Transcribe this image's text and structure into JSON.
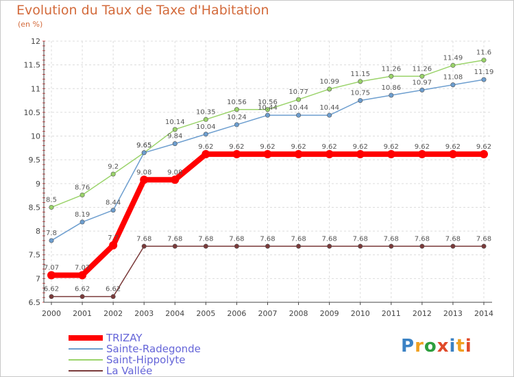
{
  "header": {
    "title": "Evolution du Taux de Taxe d'Habitation",
    "unit": "(en %)"
  },
  "logo": {
    "text": "Proxiti",
    "colors": [
      "#3b82c4",
      "#f0a020",
      "#2e9e3e",
      "#e04a2a",
      "#3b82c4",
      "#f0a020",
      "#e04a2a"
    ]
  },
  "chart_data": {
    "type": "line",
    "title": "Evolution du Taux de Taxe d'Habitation",
    "ylabel": "(en %)",
    "xlabel": "",
    "ylim": [
      6.5,
      12
    ],
    "yticks": [
      "6.5",
      "7",
      "7.5",
      "8",
      "8.5",
      "9",
      "9.5",
      "10",
      "10.5",
      "11",
      "11.5",
      "12"
    ],
    "x": [
      "2000",
      "2001",
      "2002",
      "2003",
      "2004",
      "2005",
      "2006",
      "2007",
      "2008",
      "2009",
      "2010",
      "2011",
      "2012",
      "2013",
      "2014"
    ],
    "grid": true,
    "legend_position": "bottom-left",
    "series": [
      {
        "name": "TRIZAY",
        "color": "#ff0000",
        "values": [
          7.07,
          7.07,
          7.7,
          9.08,
          9.08,
          9.62,
          9.62,
          9.62,
          9.62,
          9.62,
          9.62,
          9.62,
          9.62,
          9.62,
          9.62
        ],
        "labels": [
          "7.07",
          "7.07",
          "7.7",
          "9.08",
          "9.08",
          "9.62",
          "9.62",
          "9.62",
          "9.62",
          "9.62",
          "9.62",
          "9.62",
          "9.62",
          "9.62",
          "9.62"
        ]
      },
      {
        "name": "Sainte-Radegonde",
        "color": "#6d9ecf",
        "values": [
          7.8,
          8.19,
          8.44,
          9.65,
          9.84,
          10.04,
          10.24,
          10.44,
          10.44,
          10.44,
          10.75,
          10.86,
          10.97,
          11.08,
          11.19
        ],
        "labels": [
          "7.8",
          "8.19",
          "8.44",
          "9.65",
          "9.84",
          "10.04",
          "10.24",
          "10.44",
          "10.44",
          "10.44",
          "10.75",
          "10.86",
          "10.97",
          "11.08",
          "11.19"
        ]
      },
      {
        "name": "Saint-Hippolyte",
        "color": "#9ad36a",
        "values": [
          8.5,
          8.76,
          9.2,
          9.65,
          10.14,
          10.35,
          10.56,
          10.56,
          10.77,
          10.99,
          11.15,
          11.26,
          11.26,
          11.49,
          11.6
        ],
        "labels": [
          "8.5",
          "8.76",
          "9.2",
          "9.65",
          "10.14",
          "10.35",
          "10.56",
          "10.56",
          "10.77",
          "10.99",
          "11.15",
          "11.26",
          "11.26",
          "11.49",
          "11.6"
        ]
      },
      {
        "name": "La Vallée",
        "color": "#7a3a3a",
        "values": [
          6.62,
          6.62,
          6.62,
          7.68,
          7.68,
          7.68,
          7.68,
          7.68,
          7.68,
          7.68,
          7.68,
          7.68,
          7.68,
          7.68,
          7.68
        ],
        "labels": [
          "6.62",
          "6.62",
          "6.62",
          "7.68",
          "7.68",
          "7.68",
          "7.68",
          "7.68",
          "7.68",
          "7.68",
          "7.68",
          "7.68",
          "7.68",
          "7.68",
          "7.68"
        ]
      }
    ]
  }
}
